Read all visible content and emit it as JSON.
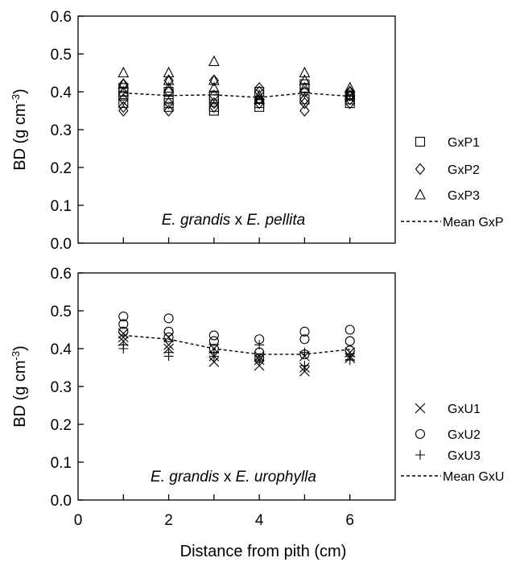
{
  "chart_data": [
    {
      "type": "scatter",
      "annotation": {
        "parts": [
          {
            "text": "E. grandis",
            "italic": true
          },
          {
            "text": " x ",
            "italic": false
          },
          {
            "text": "E. pellita",
            "italic": true
          }
        ]
      },
      "xlim": [
        0,
        7
      ],
      "ylim": [
        0,
        0.6
      ],
      "yticks": [
        "0.0",
        "0.1",
        "0.2",
        "0.3",
        "0.4",
        "0.5",
        "0.6"
      ],
      "ylabel": {
        "main": "BD (g cm",
        "sup": "-3",
        "close": ")"
      },
      "legend_position": "right",
      "series": [
        {
          "name": "GxP1",
          "marker": "square",
          "points": [
            [
              1,
              0.4
            ],
            [
              1,
              0.41
            ],
            [
              1,
              0.39
            ],
            [
              1,
              0.37
            ],
            [
              2,
              0.4
            ],
            [
              2,
              0.38
            ],
            [
              2,
              0.37
            ],
            [
              2,
              0.36
            ],
            [
              3,
              0.39
            ],
            [
              3,
              0.35
            ],
            [
              3,
              0.36
            ],
            [
              3,
              0.38
            ],
            [
              4,
              0.4
            ],
            [
              4,
              0.37
            ],
            [
              4,
              0.36
            ],
            [
              5,
              0.42
            ],
            [
              5,
              0.41
            ],
            [
              5,
              0.38
            ],
            [
              6,
              0.39
            ],
            [
              6,
              0.38
            ],
            [
              6,
              0.37
            ]
          ]
        },
        {
          "name": "GxP2",
          "marker": "diamond",
          "points": [
            [
              1,
              0.36
            ],
            [
              1,
              0.35
            ],
            [
              1,
              0.38
            ],
            [
              1,
              0.42
            ],
            [
              2,
              0.35
            ],
            [
              2,
              0.43
            ],
            [
              2,
              0.37
            ],
            [
              2,
              0.4
            ],
            [
              3,
              0.36
            ],
            [
              3,
              0.43
            ],
            [
              3,
              0.37
            ],
            [
              3,
              0.39
            ],
            [
              4,
              0.41
            ],
            [
              4,
              0.38
            ],
            [
              4,
              0.37
            ],
            [
              4,
              0.4
            ],
            [
              5,
              0.35
            ],
            [
              5,
              0.37
            ],
            [
              5,
              0.38
            ],
            [
              5,
              0.4
            ],
            [
              6,
              0.4
            ],
            [
              6,
              0.38
            ],
            [
              6,
              0.37
            ],
            [
              6,
              0.39
            ]
          ]
        },
        {
          "name": "GxP3",
          "marker": "triangle",
          "points": [
            [
              1,
              0.45
            ],
            [
              1,
              0.42
            ],
            [
              1,
              0.4
            ],
            [
              2,
              0.45
            ],
            [
              2,
              0.43
            ],
            [
              2,
              0.41
            ],
            [
              3,
              0.48
            ],
            [
              3,
              0.43
            ],
            [
              3,
              0.41
            ],
            [
              4,
              0.39
            ],
            [
              4,
              0.38
            ],
            [
              5,
              0.45
            ],
            [
              5,
              0.43
            ],
            [
              5,
              0.41
            ],
            [
              6,
              0.41
            ],
            [
              6,
              0.4
            ],
            [
              6,
              0.39
            ]
          ]
        },
        {
          "name": "Mean GxP",
          "marker": "dashed-line",
          "points": [
            [
              1,
              0.397
            ],
            [
              2,
              0.39
            ],
            [
              3,
              0.392
            ],
            [
              4,
              0.385
            ],
            [
              5,
              0.397
            ],
            [
              6,
              0.388
            ]
          ]
        }
      ]
    },
    {
      "type": "scatter",
      "annotation": {
        "parts": [
          {
            "text": "E. grandis",
            "italic": true
          },
          {
            "text": " x ",
            "italic": false
          },
          {
            "text": "E. urophylla",
            "italic": true
          }
        ]
      },
      "xlim": [
        0,
        7
      ],
      "ylim": [
        0,
        0.6
      ],
      "xticks": [
        0,
        2,
        4,
        6
      ],
      "yticks": [
        "0.0",
        "0.1",
        "0.2",
        "0.3",
        "0.4",
        "0.5",
        "0.6"
      ],
      "xlabel": "Distance from pith (cm)",
      "ylabel": {
        "main": "BD (g cm",
        "sup": "-3",
        "close": ")"
      },
      "legend_position": "right",
      "series": [
        {
          "name": "GxU1",
          "marker": "x",
          "points": [
            [
              1,
              0.44
            ],
            [
              1,
              0.43
            ],
            [
              1,
              0.42
            ],
            [
              2,
              0.43
            ],
            [
              2,
              0.41
            ],
            [
              2,
              0.4
            ],
            [
              3,
              0.4
            ],
            [
              3,
              0.38
            ],
            [
              3,
              0.365
            ],
            [
              4,
              0.38
            ],
            [
              4,
              0.37
            ],
            [
              4,
              0.355
            ],
            [
              5,
              0.38
            ],
            [
              5,
              0.35
            ],
            [
              5,
              0.34
            ],
            [
              6,
              0.39
            ],
            [
              6,
              0.38
            ],
            [
              6,
              0.375
            ]
          ]
        },
        {
          "name": "GxU2",
          "marker": "circle",
          "points": [
            [
              1,
              0.485
            ],
            [
              1,
              0.465
            ],
            [
              1,
              0.445
            ],
            [
              2,
              0.48
            ],
            [
              2,
              0.445
            ],
            [
              2,
              0.43
            ],
            [
              3,
              0.435
            ],
            [
              3,
              0.42
            ],
            [
              3,
              0.4
            ],
            [
              4,
              0.425
            ],
            [
              4,
              0.39
            ],
            [
              4,
              0.375
            ],
            [
              5,
              0.445
            ],
            [
              5,
              0.425
            ],
            [
              5,
              0.385
            ],
            [
              6,
              0.45
            ],
            [
              6,
              0.42
            ],
            [
              6,
              0.395
            ]
          ]
        },
        {
          "name": "GxU3",
          "marker": "plus",
          "points": [
            [
              1,
              0.41
            ],
            [
              1,
              0.4
            ],
            [
              2,
              0.39
            ],
            [
              2,
              0.38
            ],
            [
              3,
              0.39
            ],
            [
              3,
              0.38
            ],
            [
              4,
              0.41
            ],
            [
              4,
              0.37
            ],
            [
              5,
              0.39
            ],
            [
              5,
              0.355
            ],
            [
              6,
              0.38
            ],
            [
              6,
              0.37
            ]
          ]
        },
        {
          "name": "Mean GxU",
          "marker": "dashed-line",
          "points": [
            [
              1,
              0.435
            ],
            [
              2,
              0.425
            ],
            [
              3,
              0.4
            ],
            [
              4,
              0.385
            ],
            [
              5,
              0.385
            ],
            [
              6,
              0.398
            ]
          ]
        }
      ]
    }
  ]
}
